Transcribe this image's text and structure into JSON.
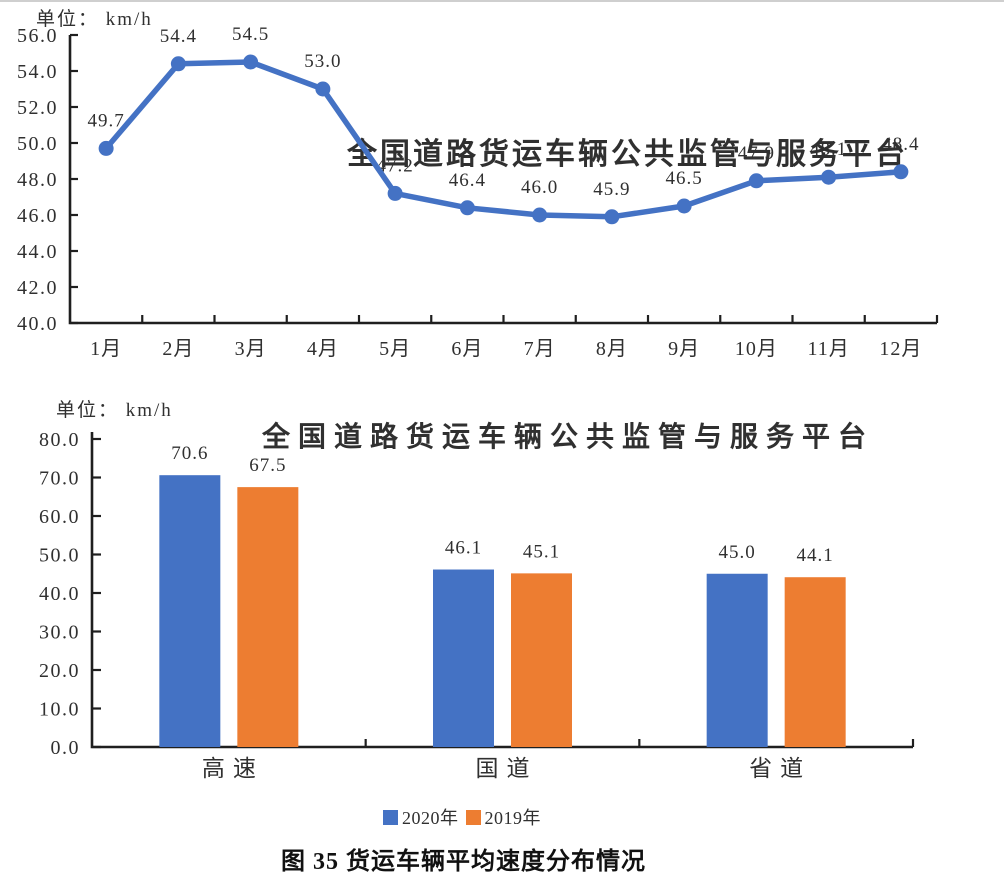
{
  "page": {
    "caption": "图 35 货运车辆平均速度分布情况",
    "watermark": "全国道路货运车辆公共监管与服务平台"
  },
  "colors": {
    "series_blue": "#4472C4",
    "series_orange": "#ED7D31",
    "watermark_blue": "#3A46C8",
    "axis": "#1F1F1F",
    "text": "#303030"
  },
  "chart_data": [
    {
      "type": "line",
      "unit_label": "单位： km/h",
      "categories": [
        "1月",
        "2月",
        "3月",
        "4月",
        "5月",
        "6月",
        "7月",
        "8月",
        "9月",
        "10月",
        "11月",
        "12月"
      ],
      "values": [
        49.7,
        54.4,
        54.5,
        53.0,
        47.2,
        46.4,
        46.0,
        45.9,
        46.5,
        47.9,
        48.1,
        48.4
      ],
      "ylim": [
        40.0,
        56.0
      ],
      "ytick_step": 2.0,
      "grid": false,
      "line_color": "#4472C4",
      "watermark": "全国道路货运车辆公共监管与服务平台"
    },
    {
      "type": "bar",
      "unit_label": "单位： km/h",
      "categories": [
        "高速",
        "国道",
        "省道"
      ],
      "series": [
        {
          "name": "2020年",
          "values": [
            70.6,
            46.1,
            45.0
          ],
          "color": "#4472C4"
        },
        {
          "name": "2019年",
          "values": [
            67.5,
            45.1,
            44.1
          ],
          "color": "#ED7D31"
        }
      ],
      "ylim": [
        0.0,
        80.0
      ],
      "ytick_step": 10.0,
      "grid": false,
      "legend_position": "bottom",
      "watermark": "全国道路货运车辆公共监管与服务平台"
    }
  ]
}
